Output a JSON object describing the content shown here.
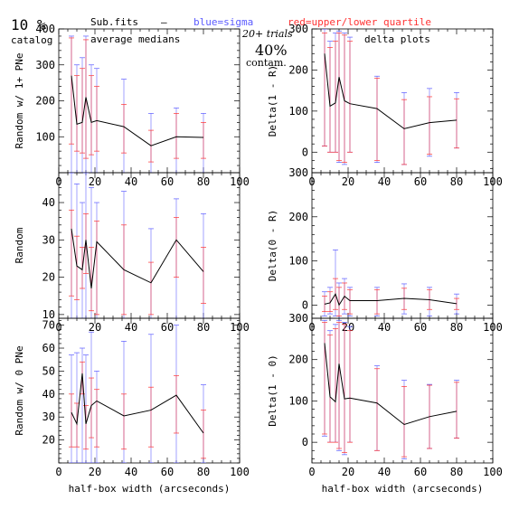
{
  "header": {
    "big_label": "10 %",
    "catalog": "catalog",
    "subfits": "Sub.fits",
    "dash": "—",
    "medians": "average medians",
    "blue": "blue=sigma",
    "red": "red=upper/lower quartile",
    "trials": "20+ trials",
    "contam_big": "40%",
    "contam": "contam.",
    "delta": "delta plots"
  },
  "colors": {
    "line": "#000000",
    "sigma": "#5a5aff",
    "quartile": "#ff3333",
    "axis": "#000000"
  },
  "chart_data": [
    {
      "id": "p1",
      "type": "line",
      "xlabel": "",
      "ylabel": "Random w/ 1+ PNe",
      "xlim": [
        0,
        100
      ],
      "ylim": [
        0,
        400
      ],
      "xticks": [
        0,
        20,
        40,
        60,
        80,
        100
      ],
      "yticks": [
        100,
        200,
        300,
        400
      ],
      "x": [
        7,
        10,
        13,
        15,
        18,
        21,
        36,
        51,
        65,
        80
      ],
      "y": [
        270,
        135,
        140,
        210,
        140,
        145,
        128,
        75,
        100,
        98
      ],
      "sigma_upper": [
        380,
        300,
        320,
        380,
        300,
        290,
        260,
        165,
        180,
        165
      ],
      "sigma_lower": [
        0,
        0,
        0,
        0,
        0,
        0,
        0,
        0,
        0,
        0
      ],
      "quartile_upper": [
        375,
        270,
        290,
        370,
        270,
        240,
        190,
        118,
        165,
        140
      ],
      "quartile_lower": [
        80,
        60,
        55,
        40,
        50,
        60,
        55,
        30,
        40,
        40
      ]
    },
    {
      "id": "p2",
      "type": "line",
      "xlabel": "",
      "ylabel": "Delta(1 - R)",
      "xlim": [
        0,
        100
      ],
      "ylim": [
        -50,
        300
      ],
      "xticks": [
        0,
        20,
        40,
        60,
        80,
        100
      ],
      "yticks": [
        0,
        100,
        200,
        300
      ],
      "x": [
        7,
        10,
        13,
        15,
        18,
        21,
        36,
        51,
        65,
        80
      ],
      "y": [
        240,
        112,
        120,
        183,
        125,
        118,
        106,
        57,
        72,
        78
      ],
      "sigma_upper": [
        300,
        270,
        290,
        295,
        290,
        280,
        185,
        145,
        155,
        145
      ],
      "sigma_lower": [
        15,
        0,
        0,
        -25,
        -30,
        0,
        -25,
        -30,
        -10,
        10
      ],
      "quartile_upper": [
        290,
        255,
        270,
        290,
        285,
        270,
        180,
        128,
        135,
        130
      ],
      "quartile_lower": [
        15,
        0,
        0,
        -20,
        -25,
        0,
        -20,
        -30,
        -5,
        10
      ]
    },
    {
      "id": "p3",
      "type": "line",
      "xlabel": "",
      "ylabel": "Random",
      "xlim": [
        0,
        100
      ],
      "ylim": [
        9,
        48
      ],
      "xticks": [
        0,
        20,
        40,
        60,
        80,
        100
      ],
      "yticks": [
        10,
        20,
        30,
        40
      ],
      "x": [
        7,
        10,
        13,
        15,
        18,
        21,
        36,
        51,
        65,
        80
      ],
      "y": [
        33,
        23,
        22,
        30,
        17,
        29.5,
        22,
        18.5,
        30,
        21.5
      ],
      "sigma_upper": [
        48,
        45,
        40,
        48,
        44,
        40,
        43,
        33,
        41,
        37
      ],
      "sigma_lower": [
        9,
        9,
        9,
        9,
        9,
        9,
        9,
        9,
        9,
        9
      ],
      "quartile_upper": [
        38,
        31,
        28,
        37,
        28,
        35,
        34,
        24,
        36,
        28
      ],
      "quartile_lower": [
        15,
        14,
        17,
        21,
        11,
        10,
        10,
        10,
        20,
        13
      ]
    },
    {
      "id": "p4",
      "type": "line",
      "xlabel": "",
      "ylabel": "Delta(0 - R)",
      "xlim": [
        0,
        100
      ],
      "ylim": [
        -30,
        300
      ],
      "xticks": [
        0,
        20,
        40,
        60,
        80,
        100
      ],
      "yticks": [
        0,
        100,
        200,
        300
      ],
      "x": [
        7,
        10,
        13,
        15,
        18,
        21,
        36,
        51,
        65,
        80
      ],
      "y": [
        2,
        5,
        25,
        0,
        20,
        10,
        10,
        15,
        12,
        3
      ],
      "sigma_upper": [
        30,
        40,
        125,
        50,
        60,
        40,
        40,
        48,
        40,
        25
      ],
      "sigma_lower": [
        -25,
        -20,
        -25,
        -30,
        -20,
        -25,
        -25,
        -20,
        -25,
        -20
      ],
      "quartile_upper": [
        20,
        30,
        60,
        40,
        50,
        35,
        35,
        38,
        35,
        15
      ],
      "quartile_lower": [
        -15,
        -15,
        -10,
        -25,
        -10,
        -20,
        -20,
        -10,
        -10,
        -10
      ]
    },
    {
      "id": "p5",
      "type": "line",
      "xlabel": "half-box width (arcseconds)",
      "ylabel": "Random w/ 0 PNe",
      "xlim": [
        0,
        100
      ],
      "ylim": [
        10,
        73
      ],
      "xticks": [
        0,
        20,
        40,
        60,
        80,
        100
      ],
      "yticks": [
        20,
        30,
        40,
        50,
        60,
        70
      ],
      "x": [
        7,
        10,
        13,
        15,
        18,
        21,
        36,
        51,
        65,
        80
      ],
      "y": [
        32,
        27,
        49,
        27,
        35,
        37,
        30.5,
        33,
        39.5,
        23
      ],
      "sigma_upper": [
        57,
        58,
        60,
        57,
        67,
        50,
        63,
        66,
        70,
        44
      ],
      "sigma_lower": [
        10,
        10,
        10,
        10,
        10,
        10,
        10,
        10,
        10,
        10
      ],
      "quartile_upper": [
        40,
        36,
        54,
        35,
        47,
        42,
        40,
        43,
        48,
        33
      ],
      "quartile_lower": [
        17,
        17,
        40,
        16,
        21,
        17,
        16,
        17,
        23,
        12
      ]
    },
    {
      "id": "p6",
      "type": "line",
      "xlabel": "half-box width (arcseconds)",
      "ylabel": "Delta(1 - 0)",
      "xlim": [
        0,
        100
      ],
      "ylim": [
        -50,
        300
      ],
      "xticks": [
        0,
        20,
        40,
        60,
        80,
        100
      ],
      "yticks": [
        0,
        100,
        200,
        300
      ],
      "x": [
        7,
        10,
        13,
        15,
        18,
        21,
        36,
        51,
        65,
        80
      ],
      "y": [
        240,
        110,
        98,
        190,
        105,
        107,
        95,
        43,
        62,
        75
      ],
      "sigma_upper": [
        295,
        270,
        285,
        295,
        290,
        280,
        185,
        150,
        140,
        150
      ],
      "sigma_lower": [
        15,
        0,
        0,
        -20,
        -30,
        0,
        -20,
        -40,
        -15,
        10
      ],
      "quartile_upper": [
        290,
        260,
        275,
        290,
        285,
        270,
        178,
        135,
        138,
        145
      ],
      "quartile_lower": [
        20,
        0,
        0,
        -15,
        -25,
        0,
        -20,
        -35,
        -15,
        10
      ]
    }
  ]
}
